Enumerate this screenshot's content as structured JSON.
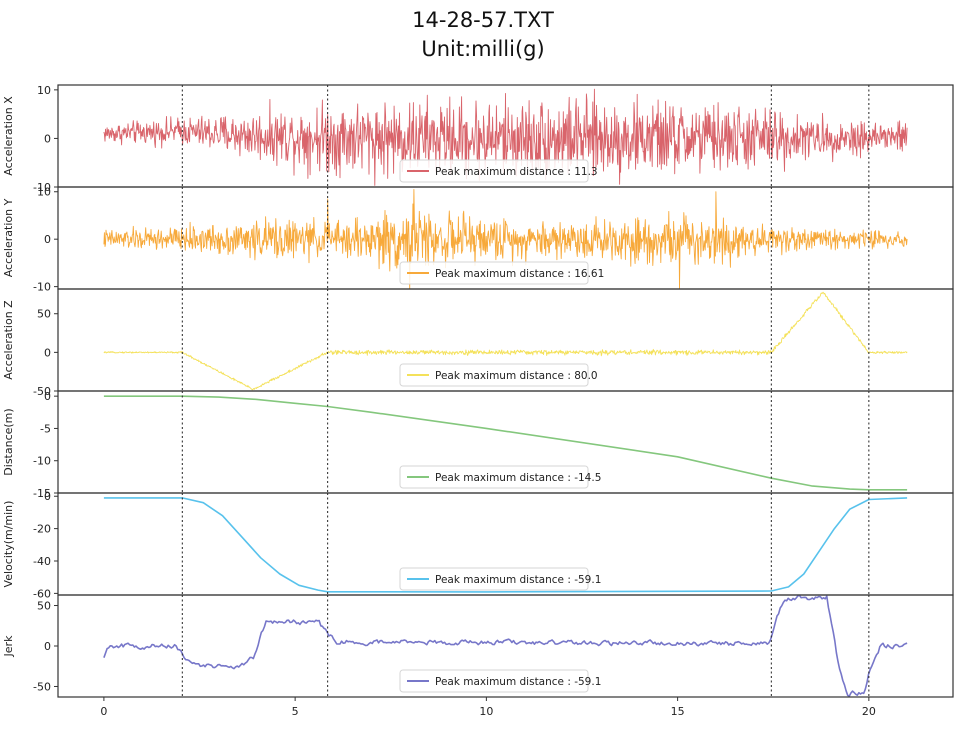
{
  "chart_data": {
    "type": "line",
    "title": "14-28-57.TXT",
    "subtitle": "Unit:milli(g)",
    "x_ticks": [
      0,
      5,
      10,
      15,
      20
    ],
    "xlim": [
      -1.2,
      22.2
    ],
    "vlines": [
      2.05,
      5.85,
      17.45,
      20.0
    ],
    "grid": false,
    "legend_placement": "lower-center",
    "panels": [
      {
        "ylabel": "Acceleration X",
        "ylim": [
          -10,
          11
        ],
        "y_ticks": [
          10,
          0,
          -10
        ],
        "color": "#d9646b",
        "legend": "Peak maximum distance : 11.3",
        "signal": "noise",
        "envelope": [
          [
            0,
            2.5
          ],
          [
            2.0,
            3.5
          ],
          [
            4.5,
            7.0
          ],
          [
            6.0,
            9.5
          ],
          [
            12.0,
            10.5
          ],
          [
            15.0,
            9.5
          ],
          [
            17.5,
            8.0
          ],
          [
            18.5,
            5.0
          ],
          [
            21.0,
            4.5
          ]
        ],
        "trend": [
          [
            0,
            1.0
          ],
          [
            2.0,
            1.5
          ],
          [
            4.0,
            0.5
          ],
          [
            8.0,
            0.0
          ],
          [
            17.0,
            0.0
          ],
          [
            21.0,
            0.3
          ]
        ]
      },
      {
        "ylabel": "Acceleration Y",
        "ylim": [
          -10.5,
          11
        ],
        "y_ticks": [
          10,
          0,
          -10
        ],
        "color": "#f7a93a",
        "legend": "Peak maximum distance : 16.61",
        "signal": "noise",
        "envelope": [
          [
            0,
            2.5
          ],
          [
            2.5,
            3.5
          ],
          [
            4.5,
            5.5
          ],
          [
            6.0,
            4.5
          ],
          [
            7.8,
            8.5
          ],
          [
            8.5,
            7.0
          ],
          [
            11.0,
            5.0
          ],
          [
            15.0,
            6.5
          ],
          [
            16.0,
            7.0
          ],
          [
            17.0,
            4.0
          ],
          [
            18.5,
            3.0
          ],
          [
            21.0,
            2.0
          ]
        ],
        "trend": [
          [
            0,
            0.0
          ],
          [
            21.0,
            0.0
          ]
        ],
        "spikes": [
          [
            5.85,
            8.5
          ],
          [
            8.0,
            -11.0
          ],
          [
            8.1,
            10.5
          ],
          [
            15.05,
            -10.5
          ],
          [
            16.0,
            10.0
          ]
        ]
      },
      {
        "ylabel": "Acceleration Z",
        "ylim": [
          -50,
          82
        ],
        "y_ticks": [
          50,
          0,
          -50
        ],
        "color": "#f4e15a",
        "legend": "Peak maximum distance : 80.0",
        "signal": "noise",
        "envelope": [
          [
            0,
            1.0
          ],
          [
            2.0,
            1.5
          ],
          [
            4.0,
            2.0
          ],
          [
            5.8,
            2.5
          ],
          [
            6.0,
            4.0
          ],
          [
            17.4,
            4.0
          ],
          [
            18.0,
            3.0
          ],
          [
            21.0,
            2.0
          ]
        ],
        "trend": [
          [
            0,
            0
          ],
          [
            2.05,
            0
          ],
          [
            3.9,
            -48
          ],
          [
            5.85,
            0
          ],
          [
            17.45,
            0
          ],
          [
            18.8,
            78
          ],
          [
            20.0,
            0
          ],
          [
            21.0,
            0
          ]
        ]
      },
      {
        "ylabel": "Distance(m)",
        "ylim": [
          -15,
          0.8
        ],
        "y_ticks": [
          0,
          -5,
          -10,
          -15
        ],
        "color": "#84c77d",
        "legend": "Peak maximum distance : -14.5",
        "signal": "smooth",
        "points": [
          [
            0,
            0
          ],
          [
            2.05,
            0
          ],
          [
            3.0,
            -0.15
          ],
          [
            4.0,
            -0.5
          ],
          [
            5.0,
            -1.1
          ],
          [
            5.85,
            -1.6
          ],
          [
            7.0,
            -2.5
          ],
          [
            10.0,
            -5.0
          ],
          [
            15.0,
            -9.4
          ],
          [
            17.45,
            -12.7
          ],
          [
            18.5,
            -13.9
          ],
          [
            19.5,
            -14.4
          ],
          [
            20.0,
            -14.5
          ],
          [
            21.0,
            -14.5
          ]
        ]
      },
      {
        "ylabel": "Velocity(m/min)",
        "ylim": [
          -61,
          2
        ],
        "y_ticks": [
          0,
          -20,
          -40,
          -60
        ],
        "color": "#58c2ec",
        "legend": "Peak maximum distance : -59.1",
        "signal": "smooth",
        "points": [
          [
            0,
            -1
          ],
          [
            2.05,
            -1
          ],
          [
            2.6,
            -4
          ],
          [
            3.1,
            -12
          ],
          [
            3.6,
            -25
          ],
          [
            4.1,
            -38
          ],
          [
            4.6,
            -48
          ],
          [
            5.1,
            -55
          ],
          [
            5.6,
            -58
          ],
          [
            5.85,
            -59
          ],
          [
            10.0,
            -59.1
          ],
          [
            17.45,
            -58.5
          ],
          [
            17.9,
            -56
          ],
          [
            18.3,
            -48
          ],
          [
            18.7,
            -34
          ],
          [
            19.1,
            -20
          ],
          [
            19.5,
            -8
          ],
          [
            20.0,
            -2
          ],
          [
            21.0,
            -1
          ]
        ]
      },
      {
        "ylabel": "Jerk",
        "ylim": [
          -63,
          63
        ],
        "y_ticks": [
          50,
          0,
          -50
        ],
        "color": "#7777c9",
        "legend": "Peak maximum distance : -59.1",
        "signal": "wiggle",
        "amp": 3.5,
        "points": [
          [
            0,
            -15
          ],
          [
            0.15,
            0
          ],
          [
            1.9,
            0
          ],
          [
            2.1,
            -15
          ],
          [
            2.3,
            -25
          ],
          [
            3.6,
            -25
          ],
          [
            3.9,
            -15
          ],
          [
            4.1,
            12
          ],
          [
            4.25,
            30
          ],
          [
            5.6,
            30
          ],
          [
            5.85,
            15
          ],
          [
            6.1,
            5
          ],
          [
            17.4,
            3
          ],
          [
            17.55,
            30
          ],
          [
            17.8,
            60
          ],
          [
            18.9,
            60
          ],
          [
            19.2,
            -20
          ],
          [
            19.45,
            -60
          ],
          [
            19.9,
            -55
          ],
          [
            20.05,
            -25
          ],
          [
            20.3,
            0
          ],
          [
            21.0,
            0
          ]
        ]
      }
    ]
  }
}
